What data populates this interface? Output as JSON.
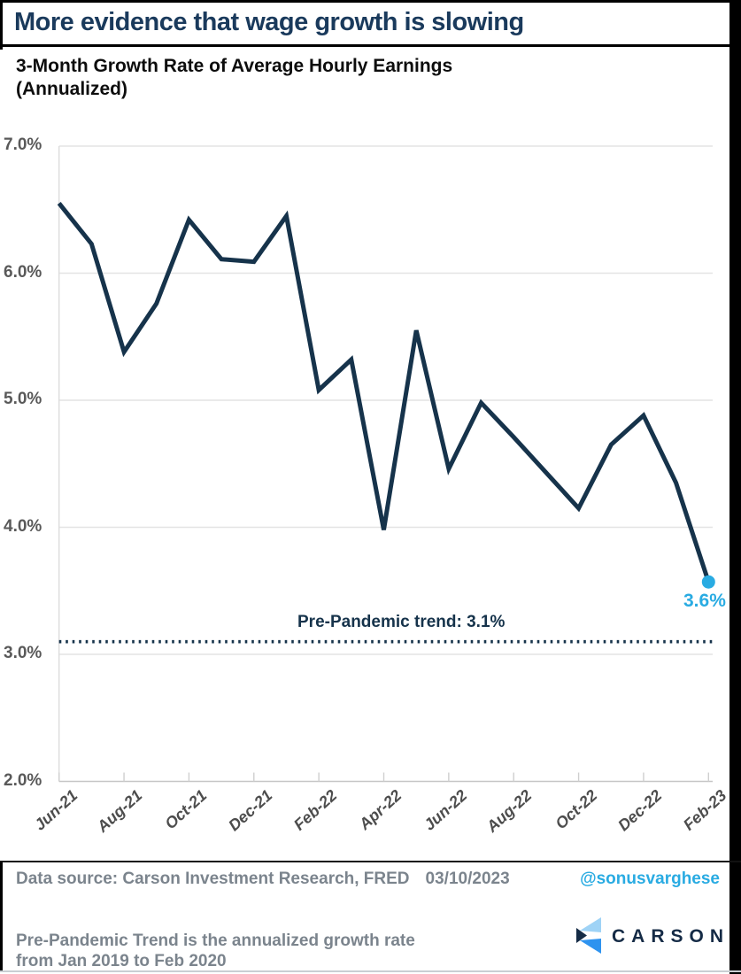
{
  "page": {
    "title": "More evidence that wage growth is slowing"
  },
  "chart": {
    "title_line1": "3-Month Growth Rate of Average Hourly Earnings",
    "title_line2": "(Annualized)",
    "trend_label": "Pre-Pandemic trend: 3.1%",
    "end_label": "3.6%"
  },
  "chart_data": {
    "type": "line",
    "title": "3-Month Growth Rate of Average Hourly Earnings (Annualized)",
    "categories": [
      "Jun-21",
      "Jul-21",
      "Aug-21",
      "Sep-21",
      "Oct-21",
      "Nov-21",
      "Dec-21",
      "Jan-22",
      "Feb-22",
      "Mar-22",
      "Apr-22",
      "May-22",
      "Jun-22",
      "Jul-22",
      "Aug-22",
      "Sep-22",
      "Oct-22",
      "Nov-22",
      "Dec-22",
      "Jan-23",
      "Feb-23"
    ],
    "values": [
      6.55,
      6.23,
      5.38,
      5.76,
      6.42,
      6.11,
      6.09,
      6.45,
      5.08,
      5.32,
      3.98,
      5.55,
      4.46,
      4.98,
      4.71,
      4.43,
      4.15,
      4.65,
      4.88,
      4.35,
      3.57
    ],
    "x_tick_labels": [
      "Jun-21",
      "Aug-21",
      "Oct-21",
      "Dec-21",
      "Feb-22",
      "Apr-22",
      "Jun-22",
      "Aug-22",
      "Oct-22",
      "Dec-22",
      "Feb-23"
    ],
    "y_tick_labels": [
      "7.0%",
      "6.0%",
      "5.0%",
      "4.0%",
      "3.0%",
      "2.0%"
    ],
    "y_tick_values": [
      7.0,
      6.0,
      5.0,
      4.0,
      3.0,
      2.0
    ],
    "ylim": [
      2.0,
      7.0
    ],
    "grid": "horizontal",
    "legend": "none",
    "reference_line": {
      "value": 3.1,
      "label": "Pre-Pandemic trend: 3.1%",
      "style": "dotted"
    },
    "last_point_label": "3.6%",
    "line_color": "#16334b",
    "highlight_color": "#29abe2",
    "gridline_color": "#e4e4e4",
    "axis_color": "#c6c6c6"
  },
  "footer": {
    "data_source": "Data source: Carson Investment Research, FRED",
    "date": "03/10/2023",
    "handle": "@sonusvarghese",
    "footnote_line1": "Pre-Pandemic Trend is the annualized growth rate",
    "footnote_line2": "from Jan 2019 to Feb 2020",
    "logo_text": "CARSON"
  }
}
